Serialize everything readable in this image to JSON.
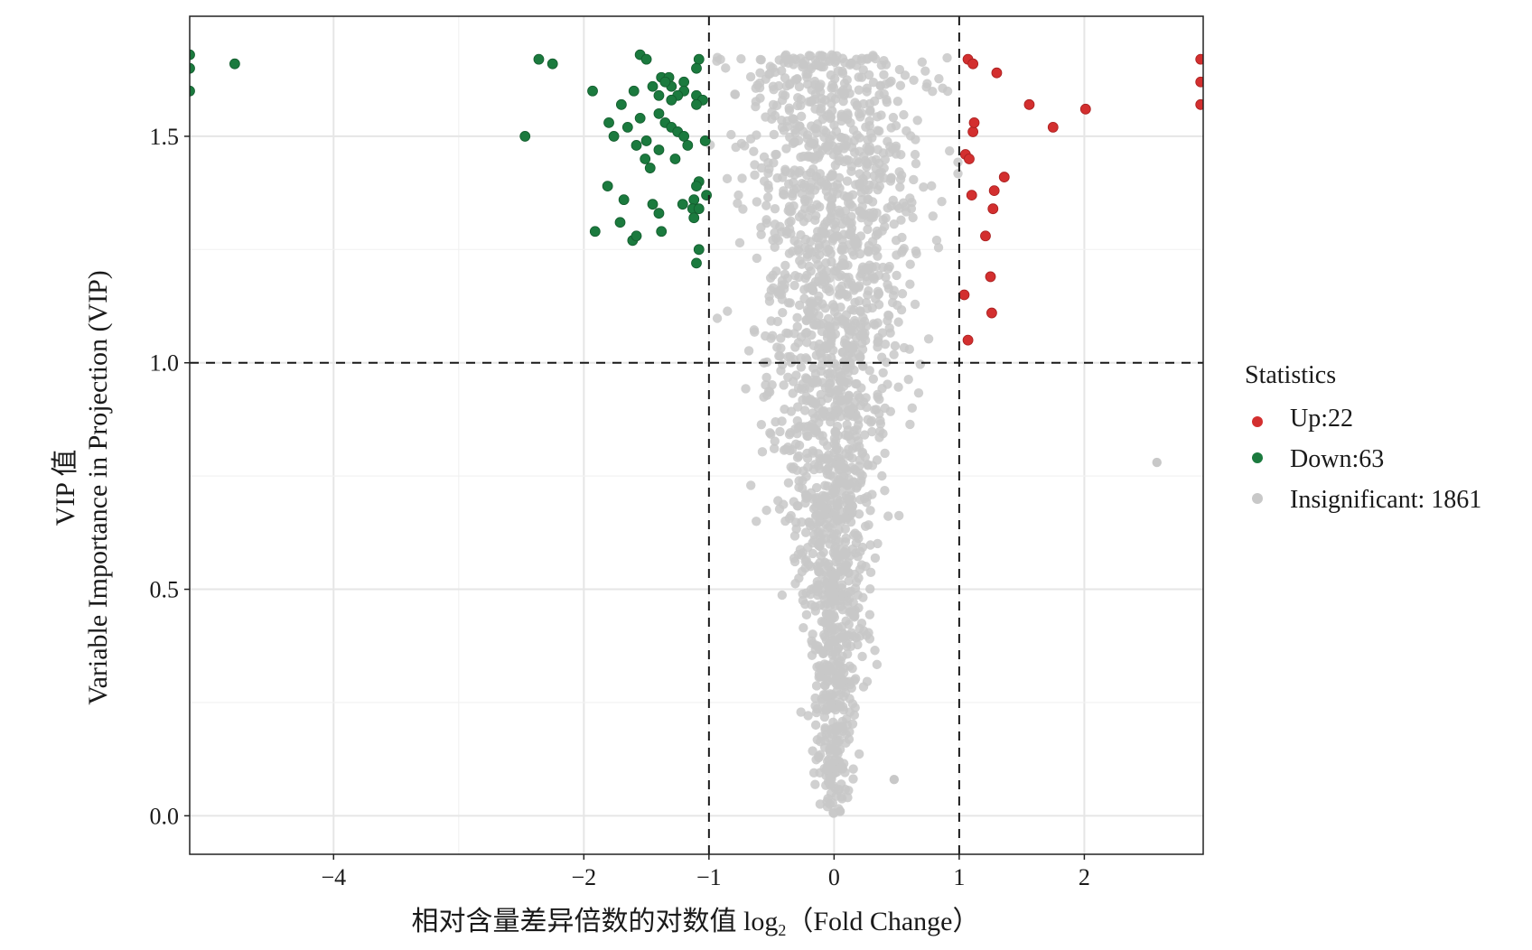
{
  "chart_data": {
    "type": "scatter",
    "title": "",
    "xlabel_main": "相对含量差异倍数的对数值 log",
    "xlabel_sub": "2",
    "xlabel_tail": "（Fold Change）",
    "ylabel_line1": "VIP 值",
    "ylabel_line2": "Variable Importance in Projection (VIP)",
    "xlim": [
      -5.15,
      2.95
    ],
    "ylim": [
      -0.085,
      1.765
    ],
    "x_ticks": [
      -4,
      -2,
      -1,
      0,
      1,
      2
    ],
    "x_tick_labels": [
      "−4",
      "−2",
      "−1",
      "0",
      "1",
      "2"
    ],
    "y_ticks": [
      0.0,
      0.5,
      1.0,
      1.5
    ],
    "y_tick_labels": [
      "0.0",
      "0.5",
      "1.0",
      "1.5"
    ],
    "grid": true,
    "thresholds": {
      "fold_change": [
        -1,
        1
      ],
      "vip": 1.0
    },
    "legend": {
      "title": "Statistics",
      "position": "right",
      "items": [
        {
          "label": "Up:22",
          "color": "#d32f2f"
        },
        {
          "label": "Down:63",
          "color": "#1b7a3e"
        },
        {
          "label": "Insignificant: 1861",
          "color": "#c8c8c8"
        }
      ]
    },
    "series": [
      {
        "name": "Up:22",
        "color": "#d32f2f",
        "points": [
          [
            2.93,
            1.67
          ],
          [
            2.93,
            1.62
          ],
          [
            2.93,
            1.57
          ],
          [
            1.07,
            1.67
          ],
          [
            1.11,
            1.66
          ],
          [
            1.3,
            1.64
          ],
          [
            1.56,
            1.57
          ],
          [
            2.01,
            1.56
          ],
          [
            1.75,
            1.52
          ],
          [
            1.11,
            1.51
          ],
          [
            1.05,
            1.46
          ],
          [
            1.08,
            1.45
          ],
          [
            1.36,
            1.41
          ],
          [
            1.28,
            1.38
          ],
          [
            1.1,
            1.37
          ],
          [
            1.27,
            1.34
          ],
          [
            1.25,
            1.19
          ],
          [
            1.04,
            1.15
          ],
          [
            1.26,
            1.11
          ],
          [
            1.07,
            1.05
          ],
          [
            1.12,
            1.53
          ],
          [
            1.21,
            1.28
          ]
        ]
      },
      {
        "name": "Down:63",
        "color": "#1b7a3e",
        "points": [
          [
            -5.15,
            1.68
          ],
          [
            -5.15,
            1.65
          ],
          [
            -5.15,
            1.6
          ],
          [
            -4.79,
            1.66
          ],
          [
            -2.36,
            1.67
          ],
          [
            -2.25,
            1.66
          ],
          [
            -2.47,
            1.5
          ],
          [
            -1.93,
            1.6
          ],
          [
            -1.55,
            1.68
          ],
          [
            -1.5,
            1.67
          ],
          [
            -1.38,
            1.63
          ],
          [
            -1.32,
            1.63
          ],
          [
            -1.08,
            1.67
          ],
          [
            -1.1,
            1.65
          ],
          [
            -1.2,
            1.62
          ],
          [
            -1.3,
            1.61
          ],
          [
            -1.45,
            1.61
          ],
          [
            -1.6,
            1.6
          ],
          [
            -1.4,
            1.59
          ],
          [
            -1.2,
            1.6
          ],
          [
            -1.25,
            1.59
          ],
          [
            -1.1,
            1.59
          ],
          [
            -1.3,
            1.58
          ],
          [
            -1.05,
            1.58
          ],
          [
            -1.7,
            1.57
          ],
          [
            -1.1,
            1.57
          ],
          [
            -1.4,
            1.55
          ],
          [
            -1.55,
            1.54
          ],
          [
            -1.35,
            1.53
          ],
          [
            -1.65,
            1.52
          ],
          [
            -1.8,
            1.53
          ],
          [
            -1.3,
            1.52
          ],
          [
            -1.25,
            1.51
          ],
          [
            -1.76,
            1.5
          ],
          [
            -1.5,
            1.49
          ],
          [
            -1.2,
            1.5
          ],
          [
            -1.03,
            1.49
          ],
          [
            -1.17,
            1.48
          ],
          [
            -1.4,
            1.47
          ],
          [
            -1.51,
            1.45
          ],
          [
            -1.27,
            1.45
          ],
          [
            -1.47,
            1.43
          ],
          [
            -1.08,
            1.4
          ],
          [
            -1.1,
            1.39
          ],
          [
            -1.81,
            1.39
          ],
          [
            -1.68,
            1.36
          ],
          [
            -1.12,
            1.36
          ],
          [
            -1.45,
            1.35
          ],
          [
            -1.21,
            1.35
          ],
          [
            -1.13,
            1.34
          ],
          [
            -1.08,
            1.34
          ],
          [
            -1.4,
            1.33
          ],
          [
            -1.12,
            1.32
          ],
          [
            -1.71,
            1.31
          ],
          [
            -1.91,
            1.29
          ],
          [
            -1.38,
            1.29
          ],
          [
            -1.61,
            1.27
          ],
          [
            -1.58,
            1.28
          ],
          [
            -1.08,
            1.25
          ],
          [
            -1.1,
            1.22
          ],
          [
            -1.02,
            1.37
          ],
          [
            -1.35,
            1.62
          ],
          [
            -1.58,
            1.48
          ]
        ]
      },
      {
        "name": "Insignificant: 1861",
        "color": "#c8c8c8",
        "count": 1861,
        "generator": {
          "x_range": [
            -1.0,
            1.0
          ],
          "vip_max": 1.68,
          "outliers": [
            [
              2.58,
              0.78
            ],
            [
              0.48,
              0.08
            ]
          ]
        }
      }
    ]
  }
}
